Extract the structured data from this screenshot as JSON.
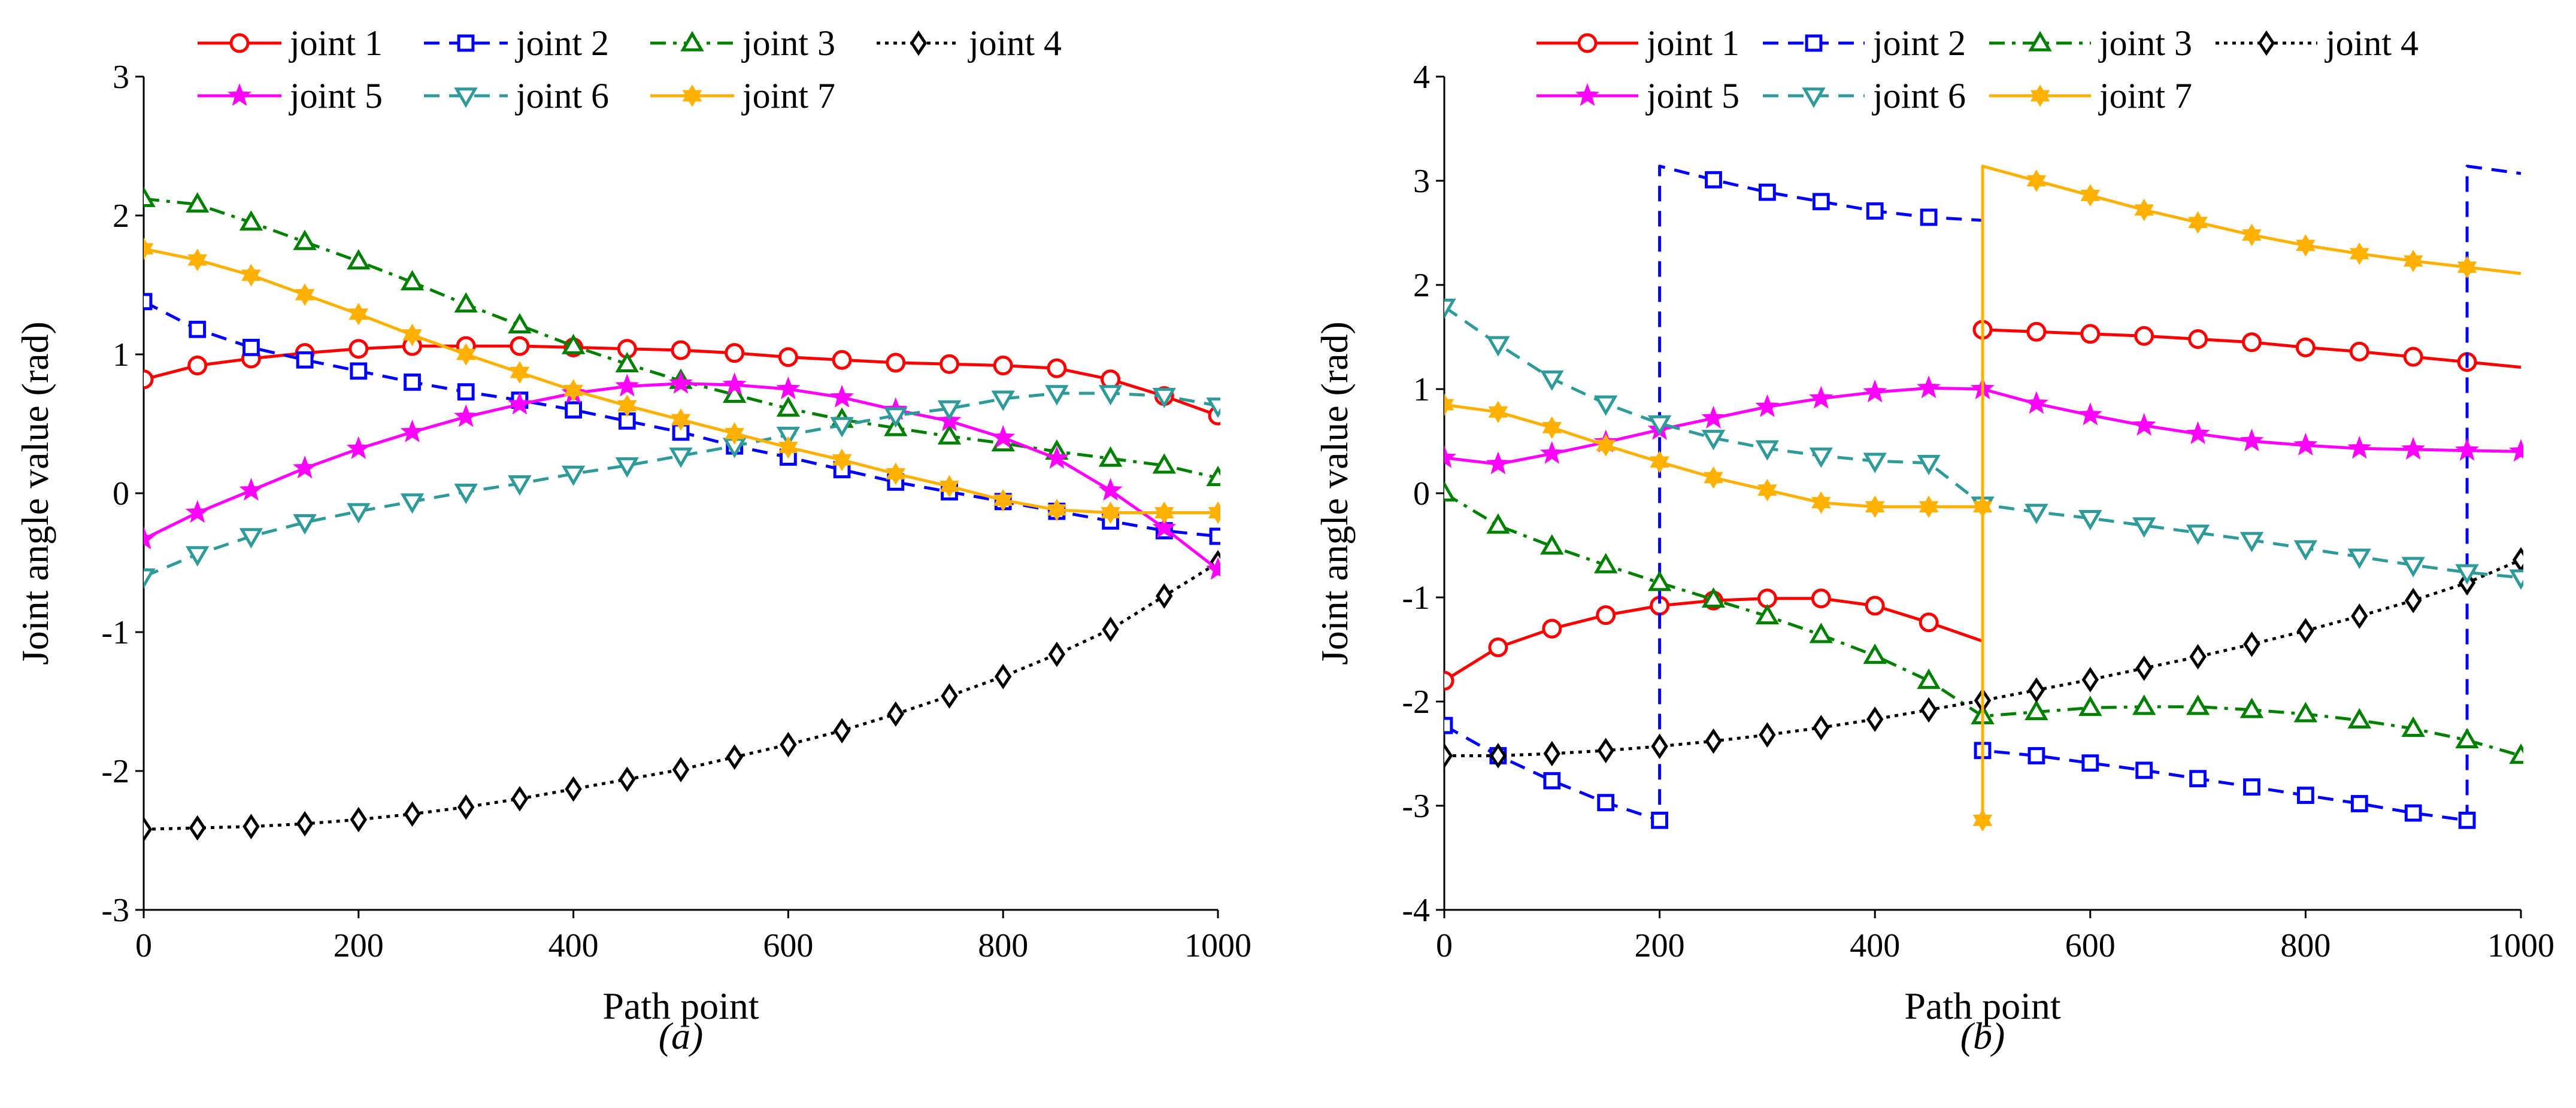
{
  "chart_data": [
    {
      "type": "line",
      "panel_label": "(a)",
      "xlabel": "Path point",
      "ylabel": "Joint angle value (rad)",
      "xlim": [
        0,
        1000
      ],
      "ylim": [
        -3,
        3
      ],
      "xticks": [
        0,
        200,
        400,
        600,
        800,
        1000
      ],
      "yticks": [
        -3,
        -2,
        -1,
        0,
        1,
        2,
        3
      ],
      "grid": false,
      "legend_position": "top",
      "series": [
        {
          "name": "joint 1",
          "color": "#ff0000",
          "dash": "solid",
          "marker": "circle",
          "x": [
            0,
            50,
            100,
            150,
            200,
            250,
            300,
            350,
            400,
            450,
            500,
            550,
            600,
            650,
            700,
            750,
            800,
            850,
            900,
            950,
            1000
          ],
          "y": [
            0.82,
            0.92,
            0.97,
            1.01,
            1.04,
            1.06,
            1.06,
            1.06,
            1.05,
            1.04,
            1.03,
            1.01,
            0.98,
            0.96,
            0.94,
            0.93,
            0.92,
            0.9,
            0.82,
            0.7,
            0.56
          ]
        },
        {
          "name": "joint 2",
          "color": "#0000ff",
          "dash": "dashed",
          "marker": "square",
          "x": [
            0,
            50,
            100,
            150,
            200,
            250,
            300,
            350,
            400,
            450,
            500,
            550,
            600,
            650,
            700,
            750,
            800,
            850,
            900,
            950,
            1000
          ],
          "y": [
            1.38,
            1.18,
            1.05,
            0.96,
            0.88,
            0.8,
            0.73,
            0.67,
            0.6,
            0.52,
            0.44,
            0.34,
            0.26,
            0.17,
            0.08,
            0.01,
            -0.06,
            -0.13,
            -0.2,
            -0.27,
            -0.31
          ]
        },
        {
          "name": "joint 3",
          "color": "#008000",
          "dash": "dashdot",
          "marker": "triangle-up",
          "x": [
            0,
            50,
            100,
            150,
            200,
            250,
            300,
            350,
            400,
            450,
            500,
            550,
            600,
            650,
            700,
            750,
            800,
            850,
            900,
            950,
            1000
          ],
          "y": [
            2.12,
            2.08,
            1.95,
            1.81,
            1.67,
            1.52,
            1.36,
            1.21,
            1.06,
            0.93,
            0.81,
            0.71,
            0.61,
            0.53,
            0.47,
            0.41,
            0.36,
            0.3,
            0.25,
            0.2,
            0.11
          ]
        },
        {
          "name": "joint 4",
          "color": "#000000",
          "dash": "dotted",
          "marker": "diamond",
          "x": [
            0,
            50,
            100,
            150,
            200,
            250,
            300,
            350,
            400,
            450,
            500,
            550,
            600,
            650,
            700,
            750,
            800,
            850,
            900,
            950,
            1000
          ],
          "y": [
            -2.42,
            -2.41,
            -2.4,
            -2.38,
            -2.35,
            -2.31,
            -2.26,
            -2.2,
            -2.13,
            -2.06,
            -1.99,
            -1.9,
            -1.81,
            -1.71,
            -1.59,
            -1.46,
            -1.32,
            -1.16,
            -0.98,
            -0.74,
            -0.5
          ]
        },
        {
          "name": "joint 5",
          "color": "#ff00ff",
          "dash": "solid",
          "marker": "star",
          "x": [
            0,
            50,
            100,
            150,
            200,
            250,
            300,
            350,
            400,
            450,
            500,
            550,
            600,
            650,
            700,
            750,
            800,
            850,
            900,
            950,
            1000
          ],
          "y": [
            -0.33,
            -0.14,
            0.02,
            0.18,
            0.32,
            0.44,
            0.55,
            0.64,
            0.72,
            0.77,
            0.79,
            0.78,
            0.75,
            0.69,
            0.6,
            0.52,
            0.4,
            0.25,
            0.02,
            -0.25,
            -0.55
          ]
        },
        {
          "name": "joint 6",
          "color": "#2e9a9a",
          "dash": "dashed",
          "marker": "triangle-down",
          "x": [
            0,
            50,
            100,
            150,
            200,
            250,
            300,
            350,
            400,
            450,
            500,
            550,
            600,
            650,
            700,
            750,
            800,
            850,
            900,
            950,
            1000
          ],
          "y": [
            -0.6,
            -0.44,
            -0.31,
            -0.21,
            -0.13,
            -0.06,
            0.01,
            0.07,
            0.14,
            0.2,
            0.27,
            0.34,
            0.42,
            0.49,
            0.56,
            0.61,
            0.68,
            0.72,
            0.72,
            0.7,
            0.63
          ]
        },
        {
          "name": "joint 7",
          "color": "#ffb000",
          "dash": "solid",
          "marker": "hexstar",
          "x": [
            0,
            50,
            100,
            150,
            200,
            250,
            300,
            350,
            400,
            450,
            500,
            550,
            600,
            650,
            700,
            750,
            800,
            850,
            900,
            950,
            1000
          ],
          "y": [
            1.76,
            1.68,
            1.57,
            1.43,
            1.29,
            1.14,
            1.0,
            0.87,
            0.74,
            0.63,
            0.53,
            0.43,
            0.33,
            0.24,
            0.14,
            0.05,
            -0.05,
            -0.12,
            -0.14,
            -0.14,
            -0.14
          ]
        }
      ]
    },
    {
      "type": "line",
      "panel_label": "(b)",
      "xlabel": "Path point",
      "ylabel": "Joint angle value (rad)",
      "xlim": [
        0,
        1000
      ],
      "ylim": [
        -4,
        4
      ],
      "xticks": [
        0,
        200,
        400,
        600,
        800,
        1000
      ],
      "yticks": [
        -4,
        -3,
        -2,
        -1,
        0,
        1,
        2,
        3,
        4
      ],
      "grid": false,
      "legend_position": "top",
      "series": [
        {
          "name": "joint 1",
          "color": "#ff0000",
          "dash": "solid",
          "marker": "circle",
          "x": [
            0,
            50,
            100,
            150,
            200,
            250,
            300,
            350,
            400,
            450,
            500,
            500,
            550,
            600,
            650,
            700,
            750,
            800,
            850,
            900,
            950,
            1000
          ],
          "y": [
            -1.8,
            -1.48,
            -1.3,
            -1.17,
            -1.08,
            -1.03,
            -1.01,
            -1.01,
            -1.08,
            -1.24,
            -1.42,
            1.57,
            1.55,
            1.53,
            1.51,
            1.48,
            1.45,
            1.4,
            1.36,
            1.31,
            1.26,
            1.21
          ],
          "marker_x": [
            0,
            50,
            100,
            150,
            200,
            250,
            300,
            350,
            400,
            450,
            500,
            550,
            600,
            650,
            700,
            750,
            800,
            850,
            900,
            950
          ]
        },
        {
          "name": "joint 2",
          "color": "#0000ff",
          "dash": "dashed",
          "marker": "square",
          "x": [
            0,
            50,
            100,
            150,
            200,
            200,
            250,
            300,
            350,
            400,
            450,
            500,
            500,
            550,
            600,
            650,
            700,
            750,
            800,
            850,
            900,
            950,
            950,
            1000
          ],
          "y": [
            -2.23,
            -2.52,
            -2.76,
            -2.97,
            -3.14,
            3.14,
            3.01,
            2.89,
            2.8,
            2.71,
            2.65,
            2.62,
            -2.47,
            -2.52,
            -2.59,
            -2.66,
            -2.74,
            -2.82,
            -2.9,
            -2.98,
            -3.07,
            -3.14,
            3.14,
            3.07
          ],
          "marker_x": [
            0,
            50,
            100,
            150,
            200,
            250,
            300,
            350,
            400,
            450,
            500,
            550,
            600,
            650,
            700,
            750,
            800,
            850,
            900,
            950
          ]
        },
        {
          "name": "joint 3",
          "color": "#008000",
          "dash": "dashdot",
          "marker": "triangle-up",
          "x": [
            0,
            50,
            100,
            150,
            200,
            250,
            300,
            350,
            400,
            450,
            500,
            550,
            600,
            650,
            700,
            750,
            800,
            850,
            900,
            950,
            1000
          ],
          "y": [
            0.0,
            -0.31,
            -0.51,
            -0.69,
            -0.86,
            -1.02,
            -1.18,
            -1.36,
            -1.56,
            -1.8,
            -2.14,
            -2.1,
            -2.06,
            -2.05,
            -2.05,
            -2.08,
            -2.12,
            -2.18,
            -2.26,
            -2.37,
            -2.52
          ]
        },
        {
          "name": "joint 4",
          "color": "#000000",
          "dash": "dotted",
          "marker": "diamond",
          "x": [
            0,
            50,
            100,
            150,
            200,
            250,
            300,
            350,
            400,
            450,
            500,
            550,
            600,
            650,
            700,
            750,
            800,
            850,
            900,
            950,
            1000
          ],
          "y": [
            -2.52,
            -2.52,
            -2.5,
            -2.47,
            -2.43,
            -2.38,
            -2.32,
            -2.25,
            -2.17,
            -2.08,
            -1.99,
            -1.89,
            -1.79,
            -1.68,
            -1.57,
            -1.45,
            -1.32,
            -1.18,
            -1.03,
            -0.86,
            -0.64
          ]
        },
        {
          "name": "joint 5",
          "color": "#ff00ff",
          "dash": "solid",
          "marker": "star",
          "x": [
            0,
            50,
            100,
            150,
            200,
            250,
            300,
            350,
            400,
            450,
            500,
            550,
            600,
            650,
            700,
            750,
            800,
            850,
            900,
            950,
            1000
          ],
          "y": [
            0.34,
            0.28,
            0.38,
            0.49,
            0.61,
            0.72,
            0.83,
            0.91,
            0.97,
            1.01,
            1.0,
            0.86,
            0.75,
            0.65,
            0.57,
            0.5,
            0.46,
            0.43,
            0.42,
            0.41,
            0.4
          ]
        },
        {
          "name": "joint 6",
          "color": "#2e9a9a",
          "dash": "dashed",
          "marker": "triangle-down",
          "x": [
            0,
            50,
            100,
            150,
            200,
            250,
            300,
            350,
            400,
            450,
            500,
            550,
            600,
            650,
            700,
            750,
            800,
            850,
            900,
            950,
            1000
          ],
          "y": [
            1.79,
            1.43,
            1.1,
            0.86,
            0.67,
            0.53,
            0.43,
            0.36,
            0.31,
            0.29,
            -0.11,
            -0.18,
            -0.24,
            -0.31,
            -0.38,
            -0.45,
            -0.53,
            -0.61,
            -0.69,
            -0.76,
            -0.81
          ]
        },
        {
          "name": "joint 7",
          "color": "#ffb000",
          "dash": "solid",
          "marker": "hexstar",
          "x": [
            0,
            50,
            100,
            150,
            200,
            250,
            300,
            350,
            400,
            450,
            500,
            500,
            500,
            550,
            600,
            650,
            700,
            750,
            800,
            850,
            900,
            950,
            1000
          ],
          "y": [
            0.85,
            0.78,
            0.63,
            0.46,
            0.3,
            0.15,
            0.03,
            -0.09,
            -0.13,
            -0.13,
            -0.13,
            -3.14,
            3.14,
            3.0,
            2.86,
            2.72,
            2.6,
            2.48,
            2.38,
            2.3,
            2.23,
            2.17,
            2.11
          ],
          "marker_x": [
            0,
            50,
            100,
            150,
            200,
            250,
            300,
            350,
            400,
            450,
            500,
            500,
            550,
            600,
            650,
            700,
            750,
            800,
            850,
            900,
            950
          ],
          "marker_y": [
            0.85,
            0.78,
            0.63,
            0.46,
            0.3,
            0.15,
            0.03,
            -0.09,
            -0.13,
            -0.13,
            -0.13,
            -3.14,
            3.0,
            2.86,
            2.72,
            2.6,
            2.48,
            2.38,
            2.3,
            2.23,
            2.17
          ]
        }
      ]
    }
  ]
}
